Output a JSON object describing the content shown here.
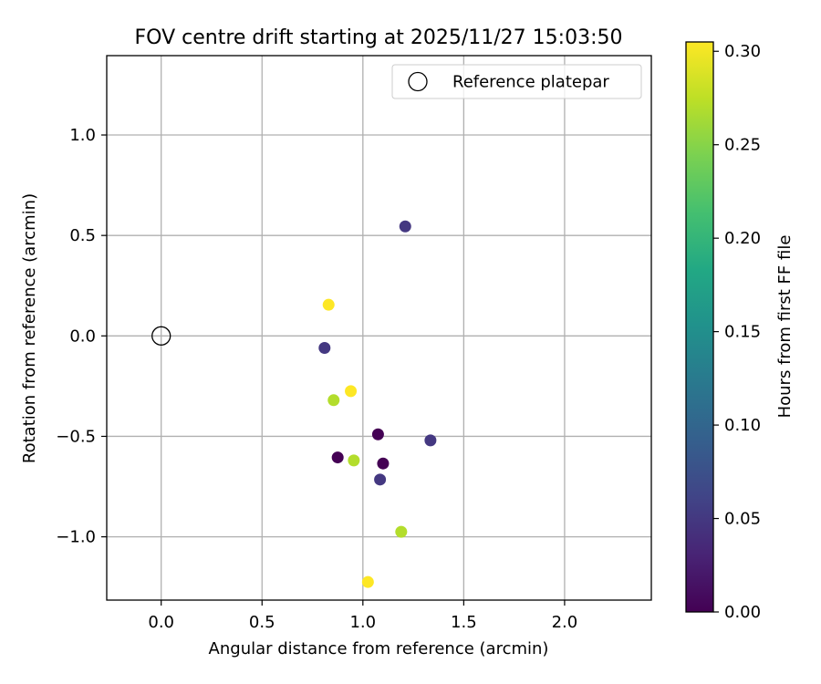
{
  "chart_data": {
    "type": "scatter",
    "title": "FOV centre drift starting at 2025/11/27 15:03:50",
    "xlabel": "Angular distance from reference (arcmin)",
    "ylabel": "Rotation from reference (arcmin)",
    "xlim": [
      -0.27,
      2.43
    ],
    "ylim": [
      -1.315,
      1.395
    ],
    "xticks": [
      0.0,
      0.5,
      1.0,
      1.5,
      2.0
    ],
    "xtick_labels": [
      "0.0",
      "0.5",
      "1.0",
      "1.5",
      "2.0"
    ],
    "yticks": [
      -1.0,
      -0.5,
      0.0,
      0.5,
      1.0
    ],
    "ytick_labels": [
      "−1.0",
      "−0.5",
      "0.0",
      "0.5",
      "1.0"
    ],
    "grid": true,
    "legend": {
      "position": "top-right",
      "entries": [
        "Reference platepar"
      ]
    },
    "reference_point": {
      "label": "Reference platepar",
      "x": 0.0,
      "y": 0.0
    },
    "points": [
      {
        "x": 1.21,
        "y": 0.545,
        "hours": 0.05
      },
      {
        "x": 0.83,
        "y": 0.155,
        "hours": 0.305
      },
      {
        "x": 0.81,
        "y": -0.06,
        "hours": 0.05
      },
      {
        "x": 0.94,
        "y": -0.275,
        "hours": 0.305
      },
      {
        "x": 0.855,
        "y": -0.32,
        "hours": 0.27
      },
      {
        "x": 1.075,
        "y": -0.49,
        "hours": 0.0
      },
      {
        "x": 1.335,
        "y": -0.52,
        "hours": 0.05
      },
      {
        "x": 0.875,
        "y": -0.605,
        "hours": 0.0
      },
      {
        "x": 0.955,
        "y": -0.62,
        "hours": 0.27
      },
      {
        "x": 1.1,
        "y": -0.635,
        "hours": 0.0
      },
      {
        "x": 1.085,
        "y": -0.715,
        "hours": 0.05
      },
      {
        "x": 1.19,
        "y": -0.975,
        "hours": 0.27
      },
      {
        "x": 1.025,
        "y": -1.225,
        "hours": 0.305
      }
    ],
    "colorbar": {
      "label": "Hours from first FF file",
      "min": 0.0,
      "max": 0.305,
      "colormap": "viridis",
      "ticks": [
        0.0,
        0.05,
        0.1,
        0.15,
        0.2,
        0.25,
        0.3
      ],
      "tick_labels": [
        "0.00",
        "0.05",
        "0.10",
        "0.15",
        "0.20",
        "0.25",
        "0.30"
      ]
    }
  }
}
